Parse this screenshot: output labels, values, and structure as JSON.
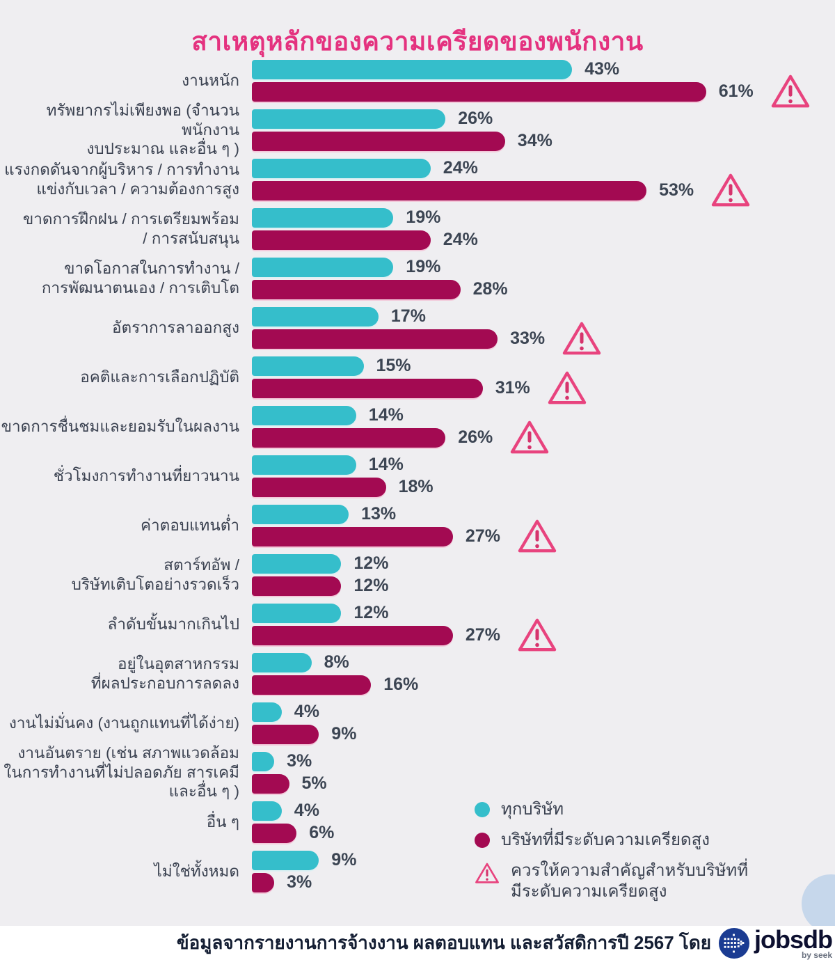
{
  "page": {
    "title": "สาเหตุหลักของความเครียดของพนักงาน"
  },
  "chart_data": {
    "type": "bar",
    "orientation": "horizontal",
    "value_unit": "percent",
    "value_suffix": "%",
    "axis_max": 61,
    "grid": false,
    "legend_position": "bottom-right",
    "categories": [
      "งานหนัก",
      "ทรัพยากรไม่เพียงพอ (จำนวนพนักงาน\nงบประมาณ และอื่น ๆ )",
      "แรงกดดันจากผู้บริหาร / การทำงาน\nแข่งกับเวลา / ความต้องการสูง",
      "ขาดการฝึกฝน / การเตรียมพร้อม\n/ การสนับสนุน",
      "ขาดโอกาสในการทำงาน /\nการพัฒนาตนเอง / การเติบโต",
      "อัตราการลาออกสูง",
      "อคติและการเลือกปฏิบัติ",
      "ขาดการชื่นชมและยอมรับในผลงาน",
      "ชั่วโมงการทำงานที่ยาวนาน",
      "ค่าตอบแทนต่ำ",
      "สตาร์ทอัพ /\nบริษัทเติบโตอย่างรวดเร็ว",
      "ลำดับขั้นมากเกินไป",
      "อยู่ในอุตสาหกรรม\nที่ผลประกอบการลดลง",
      "งานไม่มั่นคง (งานถูกแทนที่ได้ง่าย)",
      "งานอันตราย (เช่น สภาพแวดล้อม\nในการทำงานที่ไม่ปลอดภัย สารเคมี\nและอื่น ๆ )",
      "อื่น ๆ",
      "ไม่ใช่ทั้งหมด"
    ],
    "series": [
      {
        "name": "ทุกบริษัท",
        "color": "#35BECB",
        "values": [
          43,
          26,
          24,
          19,
          19,
          17,
          15,
          14,
          14,
          13,
          12,
          12,
          8,
          4,
          3,
          4,
          9
        ]
      },
      {
        "name": "บริษัทที่มีระดับความเครียดสูง",
        "color": "#A30A52",
        "values": [
          61,
          34,
          53,
          24,
          28,
          33,
          31,
          26,
          18,
          27,
          12,
          27,
          16,
          9,
          5,
          6,
          3
        ]
      }
    ],
    "flagged": [
      true,
      false,
      true,
      false,
      false,
      true,
      true,
      true,
      false,
      true,
      false,
      true,
      false,
      false,
      false,
      false,
      false
    ],
    "flag_meaning": "ควรให้ความสำคัญสำหรับบริษัทที่มีระดับความเครียดสูง"
  },
  "legend": {
    "all_companies": "ทุกบริษัท",
    "high_stress": "บริษัทที่มีระดับความเครียดสูง",
    "warning_label": "ควรให้ความสำคัญสำหรับบริษัทที่\nมีระดับความเครียดสูง"
  },
  "footer": {
    "source": "ข้อมูลจากรายงานการจ้างงาน ผลตอบแทน และสวัสดิการปี 2567 โดย",
    "brand": "jobsdb",
    "brand_sub": "by seek"
  },
  "colors": {
    "teal": "#35BECB",
    "crimson": "#A30A52",
    "title_pink": "#E4327F",
    "warning_pink": "#E8437E",
    "background_gray": "#EFEEF1",
    "text_dark": "#3A4150",
    "brand_navy": "#1B3C92"
  }
}
